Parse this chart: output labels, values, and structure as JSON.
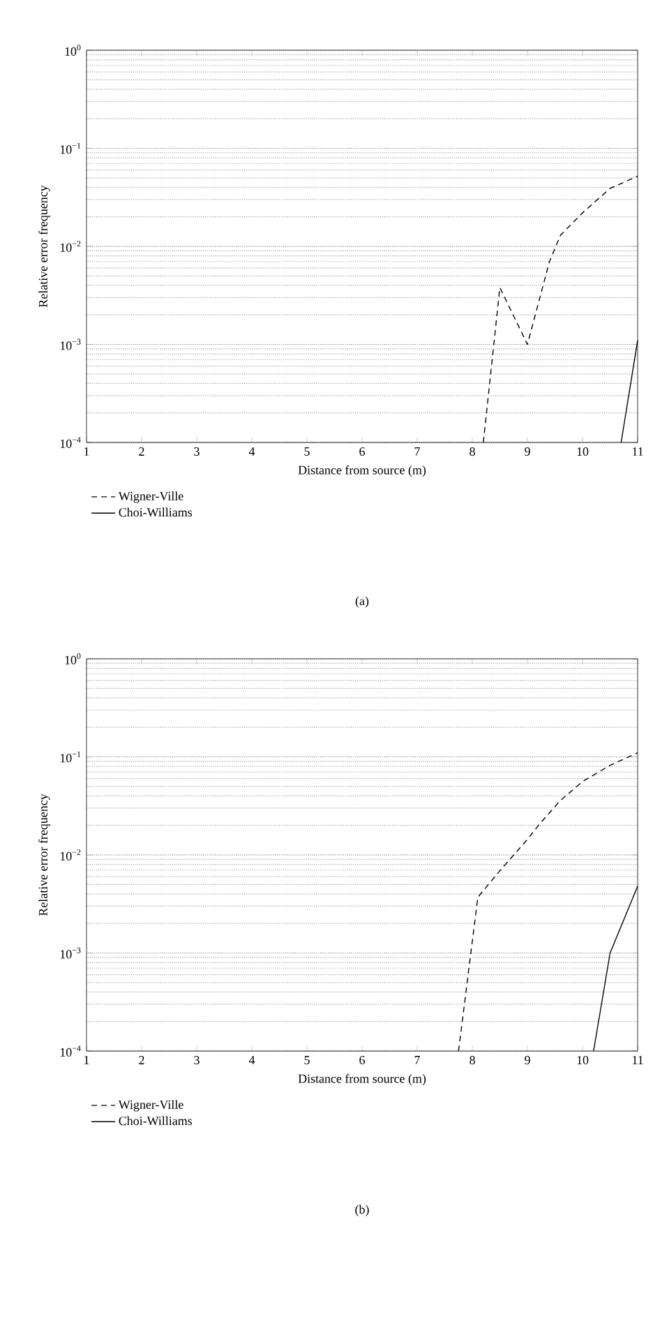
{
  "chart_data": [
    {
      "type": "line",
      "xlabel": "Distance from source (m)",
      "ylabel": "Relative error frequency",
      "annotations": [
        "(a)"
      ],
      "log": "y",
      "grid": "y",
      "legend": "bottom",
      "xlim": [
        1,
        11
      ],
      "ylim": [
        0.0001,
        1
      ],
      "xticks": [
        1,
        2,
        3,
        4,
        5,
        6,
        7,
        8,
        9,
        10,
        11
      ],
      "yticks": [
        {
          "value": 0.0001,
          "label": "10$^{−4}$"
        },
        {
          "value": 0.001,
          "label": "10$^{−3}$"
        },
        {
          "value": 0.01,
          "label": "10$^{−2}$"
        },
        {
          "value": 0.1,
          "label": "10$^{−1}$"
        },
        {
          "value": 1,
          "label": "10$^{0}$"
        }
      ],
      "series": [
        {
          "name": "Wigner-Ville",
          "color": "#000000",
          "line_style": "dashed",
          "x": [
            8.2,
            8.5,
            9.0,
            9.4,
            9.6,
            10.0,
            10.5,
            11.0
          ],
          "values": [
            0.0001,
            0.0038,
            0.001,
            0.007,
            0.013,
            0.022,
            0.039,
            0.052
          ]
        },
        {
          "name": "Choi-Williams",
          "color": "#000000",
          "line_style": "solid",
          "x": [
            10.7,
            11.0
          ],
          "values": [
            0.0001,
            0.0011
          ]
        }
      ]
    },
    {
      "type": "line",
      "xlabel": "Distance from source (m)",
      "ylabel": "Relative error frequency",
      "annotations": [
        "(b)"
      ],
      "log": "y",
      "grid": "y",
      "legend": "bottom",
      "xlim": [
        1,
        11
      ],
      "ylim": [
        0.0001,
        1
      ],
      "xticks": [
        1,
        2,
        3,
        4,
        5,
        6,
        7,
        8,
        9,
        10,
        11
      ],
      "yticks": [
        {
          "value": 0.0001,
          "label": "10$^{−4}$"
        },
        {
          "value": 0.001,
          "label": "10$^{−3}$"
        },
        {
          "value": 0.01,
          "label": "10$^{−2}$"
        },
        {
          "value": 0.1,
          "label": "10$^{−1}$"
        },
        {
          "value": 1,
          "label": "10$^{0}$"
        }
      ],
      "series": [
        {
          "name": "Wigner-Ville",
          "color": "#000000",
          "line_style": "dashed",
          "x": [
            7.75,
            8.1,
            8.5,
            9.0,
            9.2,
            9.6,
            10.0,
            10.5,
            11.0
          ],
          "values": [
            0.0001,
            0.0037,
            0.0069,
            0.0144,
            0.02,
            0.036,
            0.056,
            0.082,
            0.11
          ]
        },
        {
          "name": "Choi-Williams",
          "color": "#000000",
          "line_style": "solid",
          "x": [
            10.2,
            10.5,
            11.0
          ],
          "values": [
            0.0001,
            0.001,
            0.0048
          ]
        }
      ]
    }
  ]
}
